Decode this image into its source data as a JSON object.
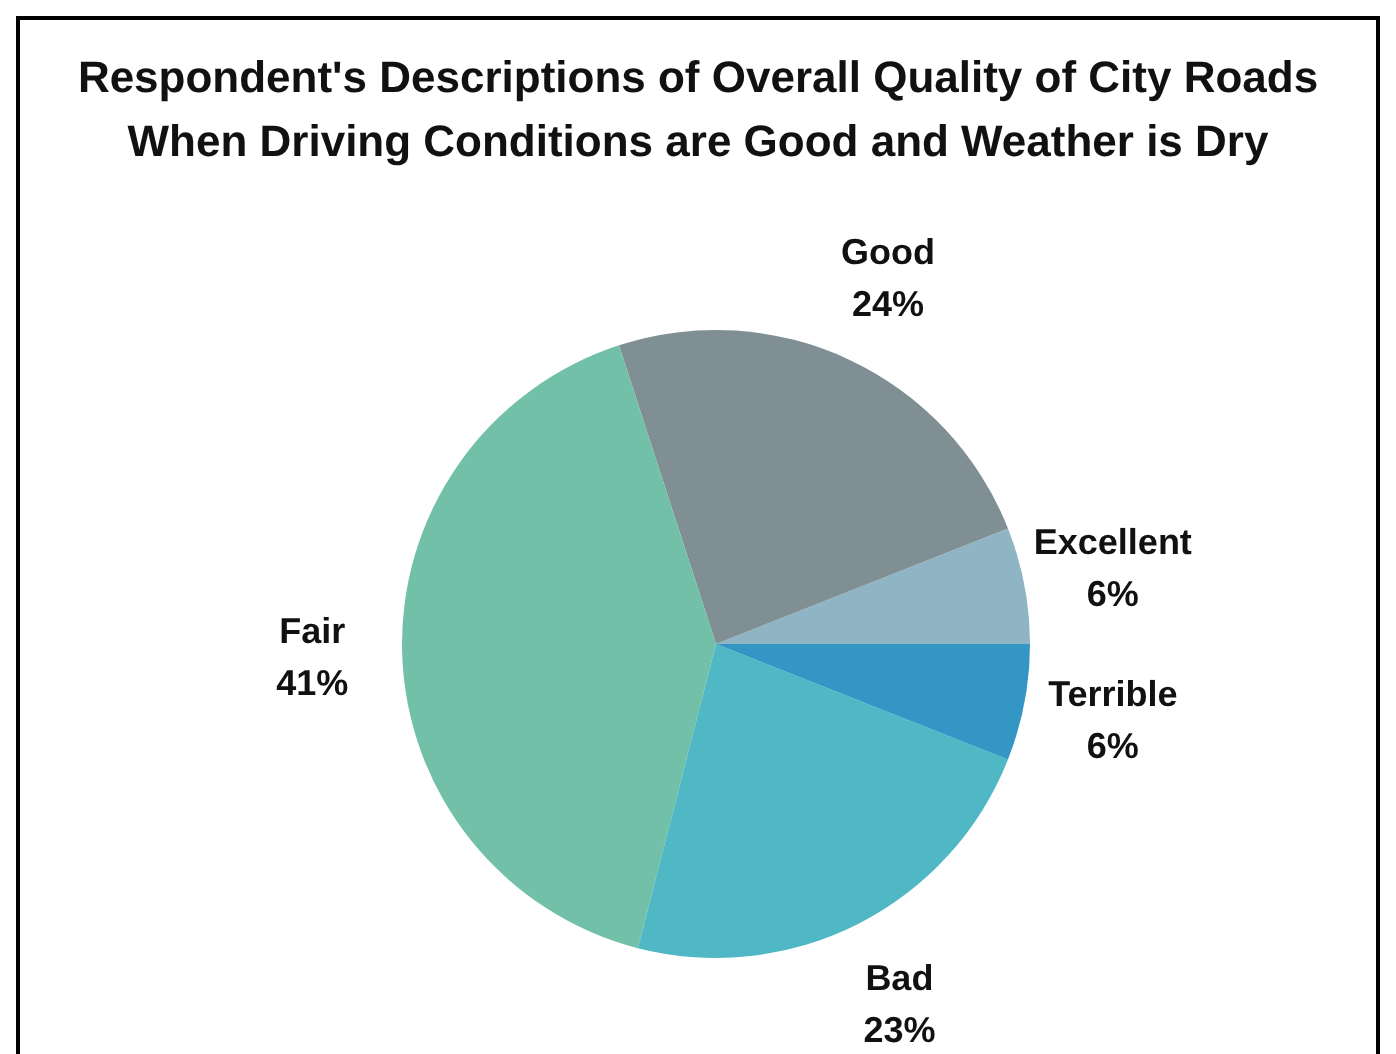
{
  "chart_data": {
    "type": "pie",
    "title": "Respondent's Descriptions of Overall Quality of City Roads When Driving Conditions are Good and Weather is Dry",
    "categories": [
      "Excellent",
      "Good",
      "Fair",
      "Bad",
      "Terrible"
    ],
    "values": [
      6,
      24,
      41,
      23,
      6
    ],
    "colors": [
      "#8fb4c4",
      "#7f8f93",
      "#72c0a8",
      "#4fb8c4",
      "#3396c4"
    ],
    "value_labels": [
      "6%",
      "24%",
      "41%",
      "23%",
      "6%"
    ]
  }
}
